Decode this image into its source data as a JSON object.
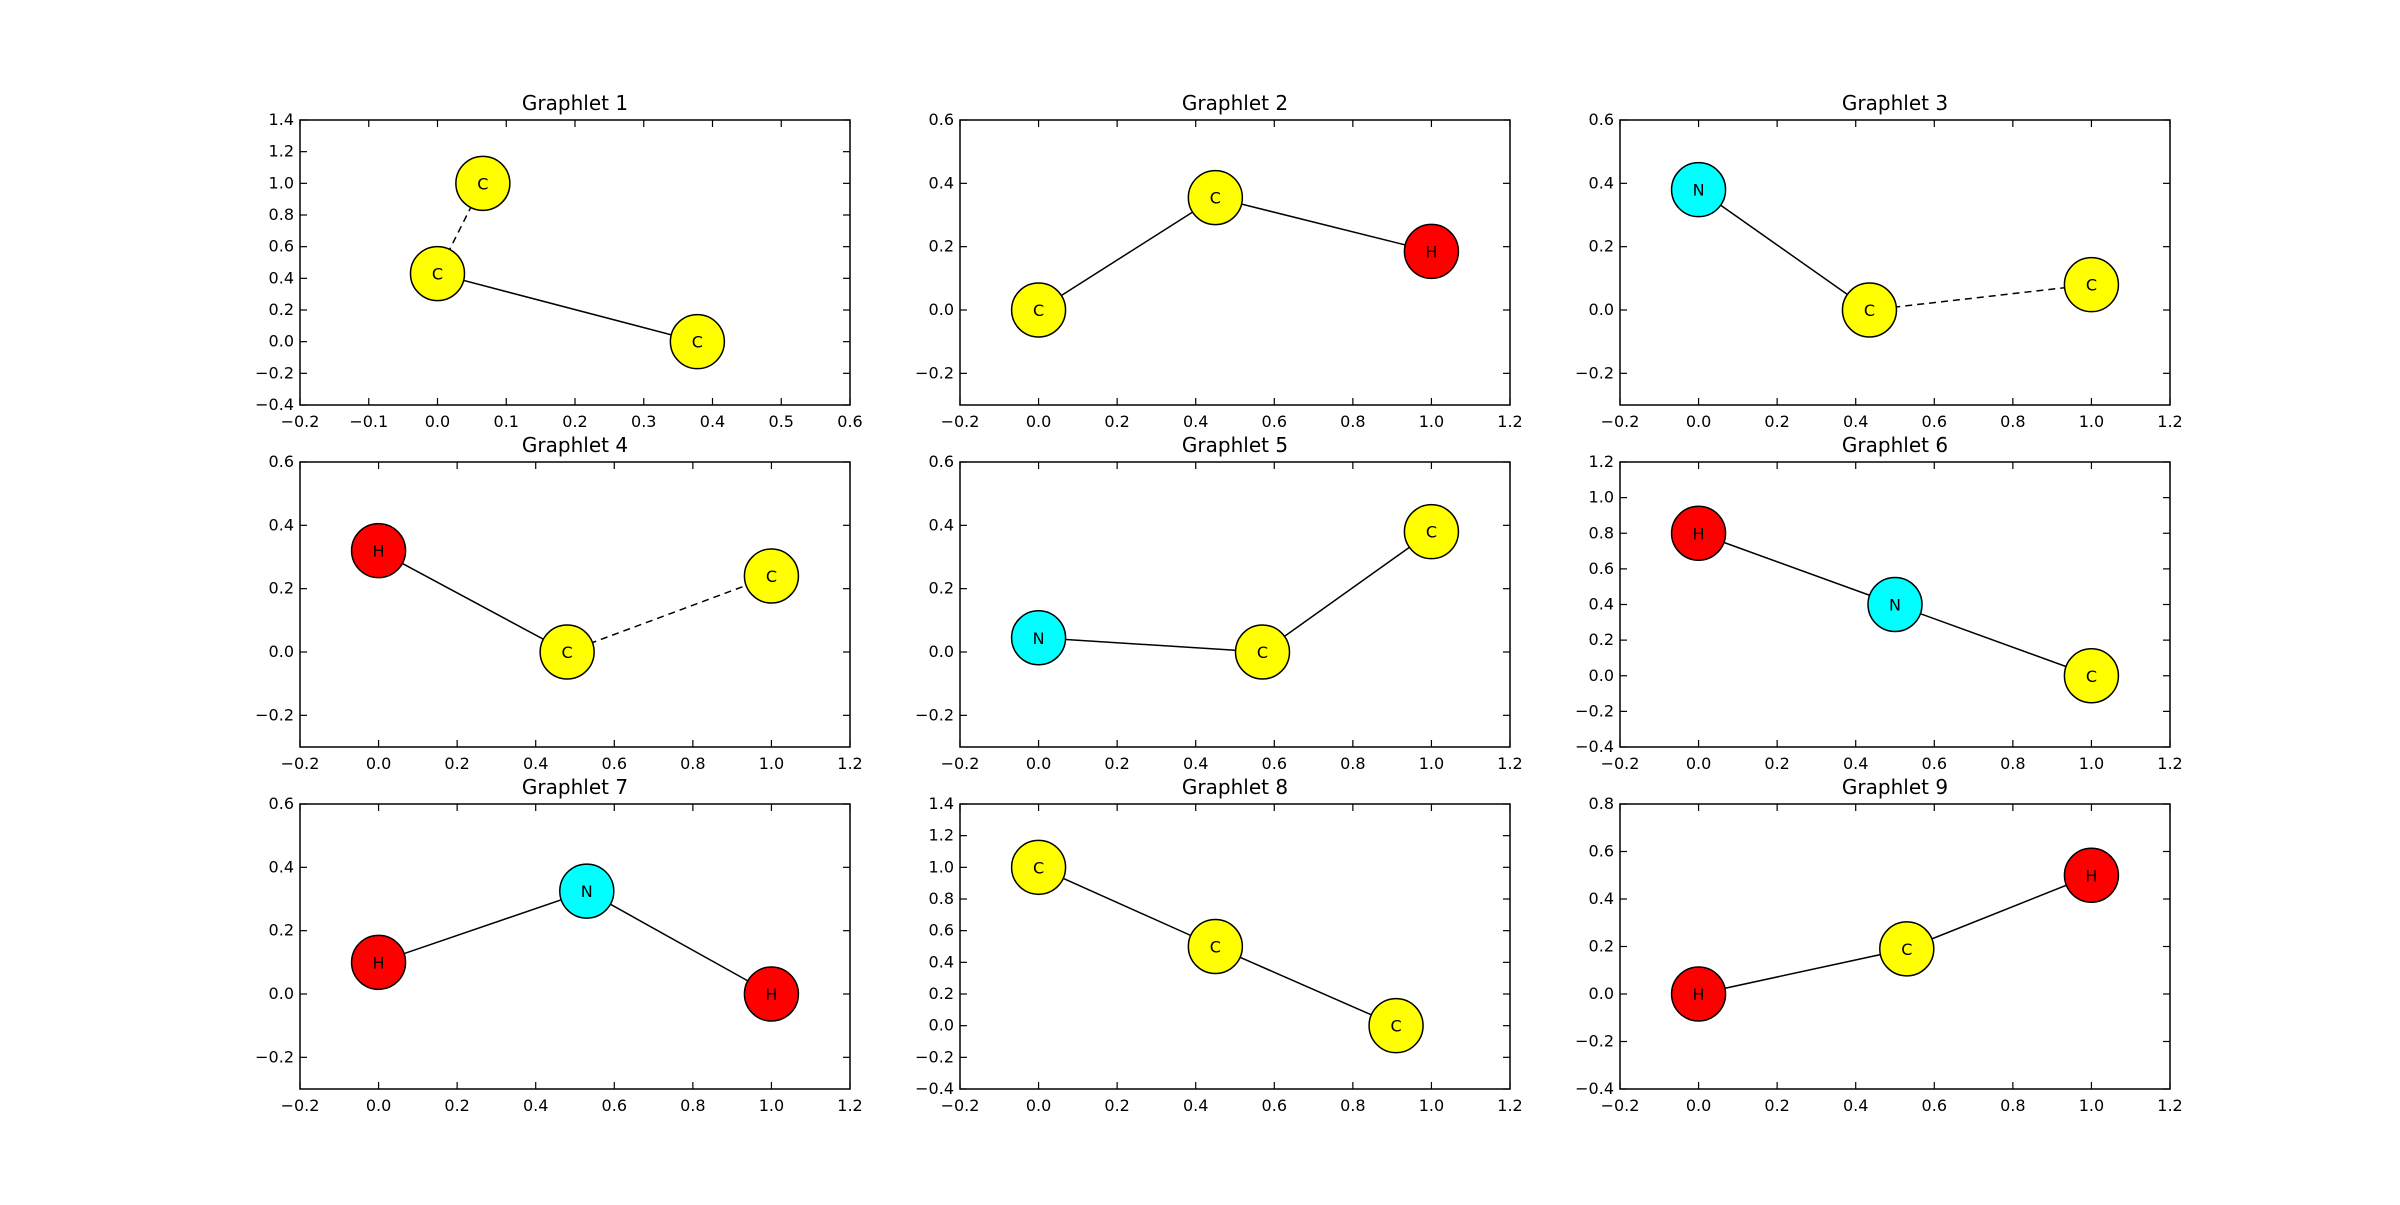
{
  "colors": {
    "C": "#ffff00",
    "H": "#ff0000",
    "N": "#00ffff"
  },
  "chart_data": [
    {
      "type": "scatter",
      "title": "Graphlet 1",
      "xlim": [
        -0.2,
        0.6
      ],
      "ylim": [
        -0.4,
        1.4
      ],
      "xticks": [
        -0.2,
        -0.1,
        0.0,
        0.1,
        0.2,
        0.3,
        0.4,
        0.5,
        0.6
      ],
      "yticks": [
        -0.4,
        -0.2,
        0.0,
        0.2,
        0.4,
        0.6,
        0.8,
        1.0,
        1.2,
        1.4
      ],
      "nodes": [
        {
          "label": "C",
          "x": 0.066,
          "y": 1.0
        },
        {
          "label": "C",
          "x": 0.0,
          "y": 0.43
        },
        {
          "label": "C",
          "x": 0.378,
          "y": 0.0
        }
      ],
      "edges": [
        {
          "from": 0,
          "to": 1,
          "style": "dashed"
        },
        {
          "from": 1,
          "to": 2,
          "style": "solid"
        }
      ]
    },
    {
      "type": "scatter",
      "title": "Graphlet 2",
      "xlim": [
        -0.2,
        1.2
      ],
      "ylim": [
        -0.3,
        0.6
      ],
      "xticks": [
        -0.2,
        0.0,
        0.2,
        0.4,
        0.6,
        0.8,
        1.0,
        1.2
      ],
      "yticks": [
        -0.2,
        0.0,
        0.2,
        0.4,
        0.6
      ],
      "nodes": [
        {
          "label": "C",
          "x": 0.0,
          "y": 0.0
        },
        {
          "label": "C",
          "x": 0.45,
          "y": 0.355
        },
        {
          "label": "H",
          "x": 1.0,
          "y": 0.185
        }
      ],
      "edges": [
        {
          "from": 0,
          "to": 1,
          "style": "solid"
        },
        {
          "from": 1,
          "to": 2,
          "style": "solid"
        }
      ]
    },
    {
      "type": "scatter",
      "title": "Graphlet 3",
      "xlim": [
        -0.2,
        1.2
      ],
      "ylim": [
        -0.3,
        0.6
      ],
      "xticks": [
        -0.2,
        0.0,
        0.2,
        0.4,
        0.6,
        0.8,
        1.0,
        1.2
      ],
      "yticks": [
        -0.2,
        0.0,
        0.2,
        0.4,
        0.6
      ],
      "nodes": [
        {
          "label": "N",
          "x": 0.0,
          "y": 0.38
        },
        {
          "label": "C",
          "x": 0.435,
          "y": 0.0
        },
        {
          "label": "C",
          "x": 1.0,
          "y": 0.08
        }
      ],
      "edges": [
        {
          "from": 0,
          "to": 1,
          "style": "solid"
        },
        {
          "from": 1,
          "to": 2,
          "style": "dashed"
        }
      ]
    },
    {
      "type": "scatter",
      "title": "Graphlet 4",
      "xlim": [
        -0.2,
        1.2
      ],
      "ylim": [
        -0.3,
        0.6
      ],
      "xticks": [
        -0.2,
        0.0,
        0.2,
        0.4,
        0.6,
        0.8,
        1.0,
        1.2
      ],
      "yticks": [
        -0.2,
        0.0,
        0.2,
        0.4,
        0.6
      ],
      "nodes": [
        {
          "label": "H",
          "x": 0.0,
          "y": 0.32
        },
        {
          "label": "C",
          "x": 0.48,
          "y": 0.0
        },
        {
          "label": "C",
          "x": 1.0,
          "y": 0.24
        }
      ],
      "edges": [
        {
          "from": 0,
          "to": 1,
          "style": "solid"
        },
        {
          "from": 1,
          "to": 2,
          "style": "dashed"
        }
      ]
    },
    {
      "type": "scatter",
      "title": "Graphlet 5",
      "xlim": [
        -0.2,
        1.2
      ],
      "ylim": [
        -0.3,
        0.6
      ],
      "xticks": [
        -0.2,
        0.0,
        0.2,
        0.4,
        0.6,
        0.8,
        1.0,
        1.2
      ],
      "yticks": [
        -0.2,
        0.0,
        0.2,
        0.4,
        0.6
      ],
      "nodes": [
        {
          "label": "N",
          "x": 0.0,
          "y": 0.045
        },
        {
          "label": "C",
          "x": 0.57,
          "y": 0.0
        },
        {
          "label": "C",
          "x": 1.0,
          "y": 0.38
        }
      ],
      "edges": [
        {
          "from": 0,
          "to": 1,
          "style": "solid"
        },
        {
          "from": 1,
          "to": 2,
          "style": "solid"
        }
      ]
    },
    {
      "type": "scatter",
      "title": "Graphlet 6",
      "xlim": [
        -0.2,
        1.2
      ],
      "ylim": [
        -0.4,
        1.2
      ],
      "xticks": [
        -0.2,
        0.0,
        0.2,
        0.4,
        0.6,
        0.8,
        1.0,
        1.2
      ],
      "yticks": [
        -0.4,
        -0.2,
        0.0,
        0.2,
        0.4,
        0.6,
        0.8,
        1.0,
        1.2
      ],
      "nodes": [
        {
          "label": "H",
          "x": 0.0,
          "y": 0.8
        },
        {
          "label": "N",
          "x": 0.5,
          "y": 0.4
        },
        {
          "label": "C",
          "x": 1.0,
          "y": 0.0
        }
      ],
      "edges": [
        {
          "from": 0,
          "to": 1,
          "style": "solid"
        },
        {
          "from": 1,
          "to": 2,
          "style": "solid"
        }
      ]
    },
    {
      "type": "scatter",
      "title": "Graphlet 7",
      "xlim": [
        -0.2,
        1.2
      ],
      "ylim": [
        -0.3,
        0.6
      ],
      "xticks": [
        -0.2,
        0.0,
        0.2,
        0.4,
        0.6,
        0.8,
        1.0,
        1.2
      ],
      "yticks": [
        -0.2,
        0.0,
        0.2,
        0.4,
        0.6
      ],
      "nodes": [
        {
          "label": "H",
          "x": 0.0,
          "y": 0.1
        },
        {
          "label": "N",
          "x": 0.53,
          "y": 0.325
        },
        {
          "label": "H",
          "x": 1.0,
          "y": 0.0
        }
      ],
      "edges": [
        {
          "from": 0,
          "to": 1,
          "style": "solid"
        },
        {
          "from": 1,
          "to": 2,
          "style": "solid"
        }
      ]
    },
    {
      "type": "scatter",
      "title": "Graphlet 8",
      "xlim": [
        -0.2,
        1.2
      ],
      "ylim": [
        -0.4,
        1.4
      ],
      "xticks": [
        -0.2,
        0.0,
        0.2,
        0.4,
        0.6,
        0.8,
        1.0,
        1.2
      ],
      "yticks": [
        -0.4,
        -0.2,
        0.0,
        0.2,
        0.4,
        0.6,
        0.8,
        1.0,
        1.2,
        1.4
      ],
      "nodes": [
        {
          "label": "C",
          "x": 0.0,
          "y": 1.0
        },
        {
          "label": "C",
          "x": 0.45,
          "y": 0.5
        },
        {
          "label": "C",
          "x": 0.91,
          "y": 0.0
        }
      ],
      "edges": [
        {
          "from": 0,
          "to": 1,
          "style": "solid"
        },
        {
          "from": 1,
          "to": 2,
          "style": "solid"
        }
      ]
    },
    {
      "type": "scatter",
      "title": "Graphlet 9",
      "xlim": [
        -0.2,
        1.2
      ],
      "ylim": [
        -0.4,
        0.8
      ],
      "xticks": [
        -0.2,
        0.0,
        0.2,
        0.4,
        0.6,
        0.8,
        1.0,
        1.2
      ],
      "yticks": [
        -0.4,
        -0.2,
        0.0,
        0.2,
        0.4,
        0.6,
        0.8
      ],
      "nodes": [
        {
          "label": "H",
          "x": 0.0,
          "y": 0.0
        },
        {
          "label": "C",
          "x": 0.53,
          "y": 0.19
        },
        {
          "label": "H",
          "x": 1.0,
          "y": 0.5
        }
      ],
      "edges": [
        {
          "from": 0,
          "to": 1,
          "style": "solid"
        },
        {
          "from": 1,
          "to": 2,
          "style": "solid"
        }
      ]
    }
  ]
}
